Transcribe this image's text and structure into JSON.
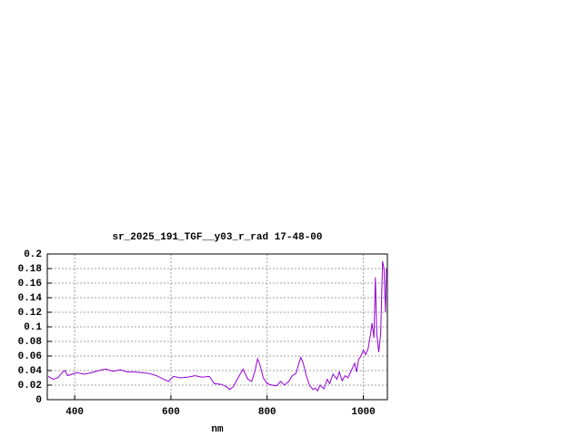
{
  "chart_data": {
    "type": "line",
    "title": "sr_2025_191_TGF__y03_r_rad 17-48-00",
    "xlabel": "nm",
    "xlim": [
      343,
      1050
    ],
    "ylim": [
      0,
      0.2
    ],
    "xticks": [
      400,
      600,
      800,
      1000
    ],
    "yticks": [
      0,
      0.02,
      0.04,
      0.06,
      0.08,
      0.1,
      0.12,
      0.14,
      0.16,
      0.18,
      0.2
    ],
    "grid": true,
    "x": [
      345,
      355,
      365,
      375,
      380,
      385,
      395,
      405,
      420,
      435,
      450,
      465,
      480,
      495,
      510,
      525,
      540,
      555,
      570,
      585,
      595,
      605,
      620,
      635,
      650,
      665,
      680,
      690,
      705,
      715,
      722,
      730,
      742,
      750,
      760,
      768,
      775,
      780,
      785,
      792,
      800,
      810,
      820,
      828,
      836,
      845,
      852,
      860,
      866,
      870,
      875,
      882,
      888,
      895,
      900,
      905,
      910,
      918,
      925,
      930,
      937,
      945,
      950,
      956,
      962,
      968,
      975,
      982,
      986,
      990,
      995,
      1000,
      1005,
      1010,
      1015,
      1018,
      1022,
      1025,
      1028,
      1032,
      1036,
      1040,
      1043,
      1046,
      1048
    ],
    "series": [
      {
        "color": "#9400d3",
        "values": [
          0.032,
          0.028,
          0.03,
          0.038,
          0.04,
          0.033,
          0.035,
          0.037,
          0.035,
          0.037,
          0.04,
          0.042,
          0.039,
          0.041,
          0.038,
          0.038,
          0.037,
          0.036,
          0.033,
          0.028,
          0.025,
          0.032,
          0.03,
          0.031,
          0.033,
          0.031,
          0.032,
          0.022,
          0.021,
          0.018,
          0.014,
          0.018,
          0.033,
          0.042,
          0.028,
          0.025,
          0.04,
          0.056,
          0.048,
          0.03,
          0.022,
          0.02,
          0.019,
          0.025,
          0.02,
          0.025,
          0.033,
          0.036,
          0.05,
          0.058,
          0.05,
          0.032,
          0.02,
          0.014,
          0.016,
          0.012,
          0.02,
          0.015,
          0.028,
          0.022,
          0.035,
          0.028,
          0.038,
          0.026,
          0.033,
          0.03,
          0.04,
          0.05,
          0.038,
          0.055,
          0.06,
          0.068,
          0.062,
          0.07,
          0.09,
          0.105,
          0.085,
          0.168,
          0.09,
          0.065,
          0.09,
          0.19,
          0.18,
          0.12,
          0.18
        ]
      }
    ]
  }
}
